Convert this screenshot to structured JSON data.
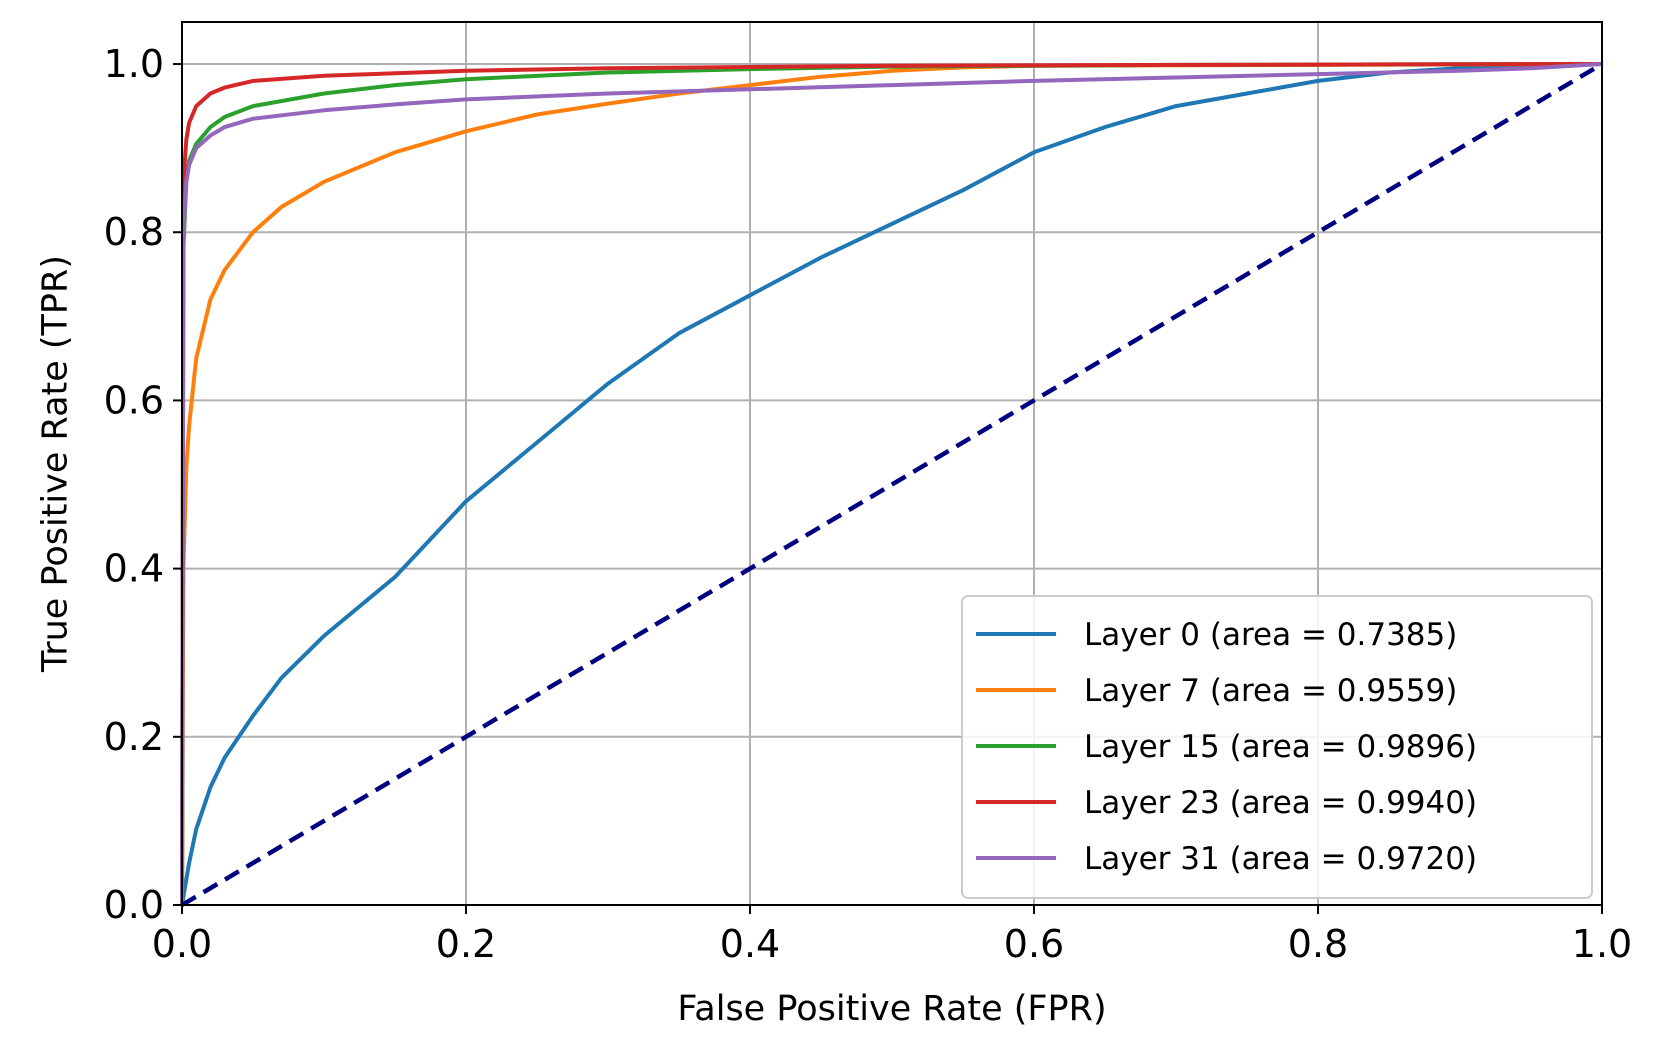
{
  "chart_data": {
    "type": "line",
    "title": "",
    "xlabel": "False Positive Rate (FPR)",
    "ylabel": "True Positive Rate (TPR)",
    "xlim": [
      0.0,
      1.0
    ],
    "ylim": [
      0.0,
      1.05
    ],
    "x_ticks": [
      "0.0",
      "0.2",
      "0.4",
      "0.6",
      "0.8",
      "1.0"
    ],
    "y_ticks": [
      "0.0",
      "0.2",
      "0.4",
      "0.6",
      "0.8",
      "1.0"
    ],
    "grid": true,
    "legend_position": "lower-right",
    "series": [
      {
        "name": "Layer 0 (area = 0.7385)",
        "color": "#1f77b4",
        "points": [
          [
            0.0,
            0.0
          ],
          [
            0.005,
            0.05
          ],
          [
            0.01,
            0.09
          ],
          [
            0.02,
            0.14
          ],
          [
            0.03,
            0.175
          ],
          [
            0.04,
            0.2
          ],
          [
            0.05,
            0.225
          ],
          [
            0.07,
            0.27
          ],
          [
            0.1,
            0.32
          ],
          [
            0.15,
            0.39
          ],
          [
            0.2,
            0.48
          ],
          [
            0.25,
            0.55
          ],
          [
            0.3,
            0.62
          ],
          [
            0.35,
            0.68
          ],
          [
            0.4,
            0.725
          ],
          [
            0.45,
            0.77
          ],
          [
            0.5,
            0.81
          ],
          [
            0.55,
            0.85
          ],
          [
            0.6,
            0.895
          ],
          [
            0.65,
            0.925
          ],
          [
            0.7,
            0.95
          ],
          [
            0.75,
            0.965
          ],
          [
            0.8,
            0.98
          ],
          [
            0.85,
            0.99
          ],
          [
            0.9,
            0.995
          ],
          [
            0.95,
            0.998
          ],
          [
            1.0,
            1.0
          ]
        ]
      },
      {
        "name": "Layer 7 (area = 0.9559)",
        "color": "#ff7f0e",
        "points": [
          [
            0.0,
            0.0
          ],
          [
            0.001,
            0.4
          ],
          [
            0.003,
            0.52
          ],
          [
            0.005,
            0.57
          ],
          [
            0.01,
            0.65
          ],
          [
            0.02,
            0.72
          ],
          [
            0.03,
            0.755
          ],
          [
            0.05,
            0.8
          ],
          [
            0.07,
            0.83
          ],
          [
            0.1,
            0.86
          ],
          [
            0.15,
            0.895
          ],
          [
            0.2,
            0.92
          ],
          [
            0.25,
            0.94
          ],
          [
            0.3,
            0.953
          ],
          [
            0.35,
            0.965
          ],
          [
            0.4,
            0.975
          ],
          [
            0.45,
            0.985
          ],
          [
            0.5,
            0.992
          ],
          [
            0.55,
            0.996
          ],
          [
            0.6,
            0.998
          ],
          [
            0.8,
            0.999
          ],
          [
            1.0,
            1.0
          ]
        ]
      },
      {
        "name": "Layer 15 (area = 0.9896)",
        "color": "#2ca02c",
        "points": [
          [
            0.0,
            0.0
          ],
          [
            0.001,
            0.78
          ],
          [
            0.003,
            0.86
          ],
          [
            0.005,
            0.885
          ],
          [
            0.01,
            0.905
          ],
          [
            0.02,
            0.925
          ],
          [
            0.03,
            0.937
          ],
          [
            0.05,
            0.95
          ],
          [
            0.1,
            0.965
          ],
          [
            0.15,
            0.975
          ],
          [
            0.2,
            0.982
          ],
          [
            0.3,
            0.99
          ],
          [
            0.4,
            0.994
          ],
          [
            0.5,
            0.997
          ],
          [
            0.7,
            0.999
          ],
          [
            1.0,
            1.0
          ]
        ]
      },
      {
        "name": "Layer 23 (area = 0.9940)",
        "color": "#d62728",
        "points": [
          [
            0.0,
            0.0
          ],
          [
            0.001,
            0.86
          ],
          [
            0.003,
            0.91
          ],
          [
            0.005,
            0.93
          ],
          [
            0.01,
            0.95
          ],
          [
            0.02,
            0.965
          ],
          [
            0.03,
            0.972
          ],
          [
            0.05,
            0.98
          ],
          [
            0.1,
            0.986
          ],
          [
            0.2,
            0.992
          ],
          [
            0.3,
            0.995
          ],
          [
            0.5,
            0.998
          ],
          [
            0.7,
            0.999
          ],
          [
            1.0,
            1.0
          ]
        ]
      },
      {
        "name": "Layer 31 (area = 0.9720)",
        "color": "#9467bd",
        "points": [
          [
            0.0,
            0.0
          ],
          [
            0.001,
            0.8
          ],
          [
            0.003,
            0.86
          ],
          [
            0.005,
            0.88
          ],
          [
            0.01,
            0.9
          ],
          [
            0.02,
            0.915
          ],
          [
            0.03,
            0.925
          ],
          [
            0.05,
            0.935
          ],
          [
            0.1,
            0.945
          ],
          [
            0.15,
            0.952
          ],
          [
            0.2,
            0.958
          ],
          [
            0.3,
            0.965
          ],
          [
            0.4,
            0.97
          ],
          [
            0.5,
            0.975
          ],
          [
            0.6,
            0.98
          ],
          [
            0.7,
            0.984
          ],
          [
            0.8,
            0.988
          ],
          [
            0.9,
            0.992
          ],
          [
            0.95,
            0.995
          ],
          [
            1.0,
            1.0
          ]
        ]
      }
    ],
    "reference_line": {
      "style": "dashed",
      "color": "#000080",
      "points": [
        [
          0.0,
          0.0
        ],
        [
          1.0,
          1.0
        ]
      ]
    }
  }
}
